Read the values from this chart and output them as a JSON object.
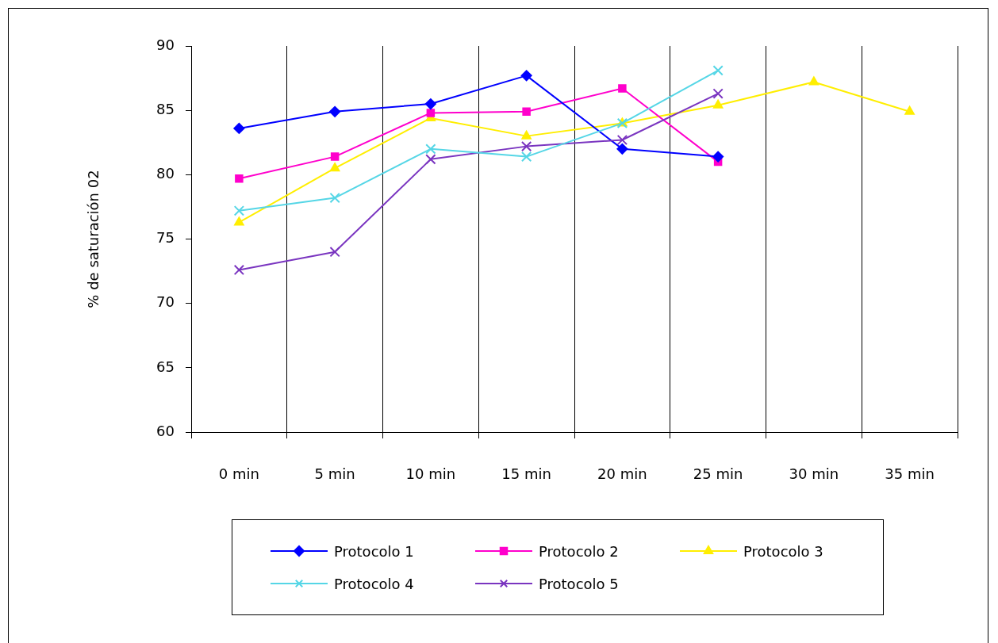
{
  "chart_data": {
    "type": "line",
    "ylabel": "% de saturación 02",
    "categories": [
      "0 min",
      "5 min",
      "10 min",
      "15 min",
      "20 min",
      "25 min",
      "30 min",
      "35 min"
    ],
    "ylim": [
      60,
      90
    ],
    "yticks": [
      60,
      65,
      70,
      75,
      80,
      85,
      90
    ],
    "grid": "x",
    "legend": "bottom",
    "line_style": "solid",
    "series": [
      {
        "name": "Protocolo 1",
        "color": "#0000ff",
        "marker": "diamond",
        "values": [
          83.6,
          84.9,
          85.5,
          87.7,
          82.0,
          81.4,
          null,
          null
        ]
      },
      {
        "name": "Protocolo 2",
        "color": "#ff00cc",
        "marker": "square",
        "values": [
          79.7,
          81.4,
          84.8,
          84.9,
          86.7,
          81.0,
          null,
          null
        ]
      },
      {
        "name": "Protocolo 3",
        "color": "#ffee00",
        "marker": "triangle",
        "values": [
          76.3,
          80.5,
          84.4,
          83.0,
          84.0,
          85.4,
          87.2,
          84.9
        ]
      },
      {
        "name": "Protocolo 4",
        "color": "#55d6e6",
        "marker": "cross",
        "values": [
          77.2,
          78.2,
          82.0,
          81.4,
          84.0,
          88.1,
          null,
          null
        ]
      },
      {
        "name": "Protocolo 5",
        "color": "#7a35c0",
        "marker": "cross",
        "values": [
          72.6,
          74.0,
          81.2,
          82.2,
          82.7,
          86.3,
          null,
          null
        ]
      }
    ]
  }
}
